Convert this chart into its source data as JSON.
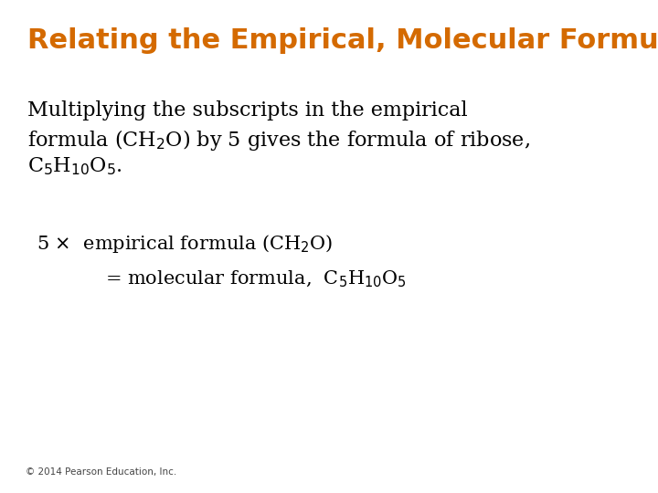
{
  "title": "Relating the Empirical, Molecular Formula",
  "title_color": "#D46A00",
  "title_fontsize": 22,
  "bg_color": "#FFFFFF",
  "body_text_color": "#000000",
  "body_fontsize": 16,
  "formula_fontsize": 15,
  "copyright_text": "© 2014 Pearson Education, Inc.",
  "copyright_fontsize": 7.5,
  "line1": "Multiplying the subscripts in the empirical",
  "line2": "formula (CH$_2$O) by 5 gives the formula of ribose,",
  "line3": "C$_5$H$_{10}$O$_5$.",
  "eq_line1": "5 $\\times$  empirical formula (CH$_2$O)",
  "eq_line2": "= molecular formula,  C$_5$H$_{10}$O$_5$"
}
